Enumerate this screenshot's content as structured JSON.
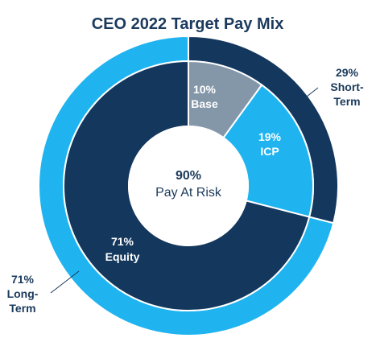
{
  "chart_data": {
    "type": "pie",
    "title": "CEO 2022 Target Pay Mix",
    "center": {
      "value": "90%",
      "label": "Pay At Risk"
    },
    "outer_ring": [
      {
        "pct": "29%",
        "label_line1": "Short-",
        "label_line2": "Term",
        "value": 29,
        "color": "#13375d"
      },
      {
        "pct": "71%",
        "label_line1": "Long-",
        "label_line2": "Term",
        "value": 71,
        "color": "#1fb4f0"
      }
    ],
    "inner_ring": [
      {
        "pct": "10%",
        "label": "Base",
        "value": 10,
        "color": "#8497a8"
      },
      {
        "pct": "19%",
        "label": "ICP",
        "value": 19,
        "color": "#1fb4f0"
      },
      {
        "pct": "71%",
        "label": "Equity",
        "value": 71,
        "color": "#13375d"
      }
    ]
  }
}
